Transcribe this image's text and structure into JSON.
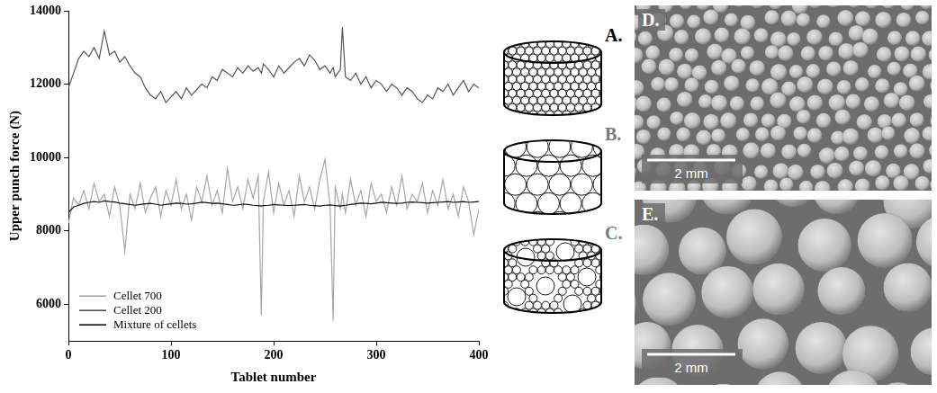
{
  "chart_data": {
    "type": "line",
    "x_label": "Tablet number",
    "y_label": "Upper punch force (N)",
    "x": [
      0,
      5,
      10,
      15,
      20,
      25,
      30,
      35,
      40,
      45,
      50,
      55,
      60,
      65,
      70,
      75,
      80,
      85,
      90,
      95,
      100,
      105,
      110,
      115,
      120,
      125,
      130,
      135,
      140,
      145,
      150,
      155,
      160,
      165,
      170,
      175,
      180,
      185,
      188,
      190,
      195,
      200,
      205,
      210,
      215,
      220,
      225,
      230,
      235,
      240,
      245,
      250,
      255,
      258,
      260,
      265,
      267,
      270,
      275,
      280,
      285,
      290,
      295,
      300,
      305,
      310,
      315,
      320,
      325,
      330,
      335,
      340,
      345,
      350,
      355,
      360,
      365,
      370,
      375,
      380,
      385,
      390,
      395,
      400
    ],
    "series": [
      {
        "name": "Cellet 700",
        "color": "#a6a6a6",
        "values": [
          8200,
          8900,
          8700,
          9100,
          8600,
          9300,
          8800,
          9000,
          8400,
          9200,
          8700,
          7450,
          9000,
          8600,
          9300,
          8500,
          8900,
          9200,
          8400,
          9100,
          8700,
          9400,
          8600,
          9000,
          8300,
          9200,
          8800,
          9500,
          8700,
          9100,
          8500,
          9700,
          8800,
          9200,
          8600,
          9400,
          8900,
          9500,
          5700,
          8800,
          9600,
          8500,
          9300,
          8700,
          9100,
          8400,
          9500,
          8800,
          9200,
          8600,
          9400,
          9950,
          8700,
          5550,
          9200,
          8600,
          9000,
          8500,
          9400,
          8700,
          9100,
          8400,
          9300,
          8800,
          9000,
          8500,
          9200,
          8700,
          9500,
          8600,
          9000,
          8800,
          9300,
          8500,
          9100,
          8700,
          9400,
          8600,
          9000,
          8400,
          9200,
          8800,
          7900,
          8600
        ]
      },
      {
        "name": "Cellet 200",
        "color": "#555555",
        "values": [
          11900,
          12300,
          12700,
          12900,
          12750,
          13000,
          12700,
          13450,
          12800,
          12900,
          12600,
          12750,
          12500,
          12300,
          12200,
          11900,
          11700,
          11600,
          11800,
          11500,
          11650,
          11800,
          11600,
          11900,
          11700,
          11850,
          12000,
          11900,
          12200,
          12100,
          12400,
          12300,
          12200,
          12450,
          12300,
          12500,
          12350,
          12450,
          12300,
          12550,
          12400,
          12200,
          12500,
          12300,
          12450,
          12600,
          12700,
          12500,
          12800,
          12650,
          12400,
          12500,
          12300,
          12450,
          12200,
          12400,
          13550,
          12200,
          12100,
          12300,
          12000,
          12200,
          11900,
          12100,
          12000,
          11800,
          12000,
          11900,
          11700,
          11900,
          11800,
          11600,
          11500,
          11700,
          11600,
          11900,
          11800,
          12000,
          11700,
          11900,
          12100,
          11800,
          12000,
          11900
        ]
      },
      {
        "name": "Mixture of cellets",
        "color": "#111111",
        "values": [
          8500,
          8650,
          8700,
          8750,
          8780,
          8800,
          8780,
          8820,
          8800,
          8790,
          8760,
          8740,
          8720,
          8700,
          8720,
          8740,
          8750,
          8730,
          8700,
          8720,
          8740,
          8760,
          8750,
          8730,
          8740,
          8760,
          8780,
          8770,
          8750,
          8760,
          8740,
          8720,
          8700,
          8710,
          8730,
          8720,
          8700,
          8690,
          8680,
          8690,
          8700,
          8720,
          8710,
          8700,
          8690,
          8700,
          8710,
          8720,
          8700,
          8690,
          8680,
          8700,
          8710,
          8700,
          8690,
          8680,
          8690,
          8700,
          8720,
          8740,
          8760,
          8750,
          8740,
          8760,
          8780,
          8770,
          8760,
          8750,
          8760,
          8780,
          8790,
          8780,
          8770,
          8760,
          8770,
          8780,
          8790,
          8800,
          8780,
          8790,
          8800,
          8780,
          8790,
          8800
        ]
      }
    ],
    "xlim": [
      0,
      400
    ],
    "xticks": [
      0,
      100,
      200,
      300,
      400
    ],
    "ylim": [
      5000,
      14000
    ],
    "yticks": [
      6000,
      8000,
      10000,
      12000,
      14000
    ],
    "grid": false,
    "legend": "lower left"
  },
  "diagrams": [
    {
      "label": "A."
    },
    {
      "label": "B."
    },
    {
      "label": "C."
    }
  ],
  "images": [
    {
      "label": "D.",
      "scale_bar": "2 mm"
    },
    {
      "label": "E.",
      "scale_bar": "2 mm"
    }
  ]
}
